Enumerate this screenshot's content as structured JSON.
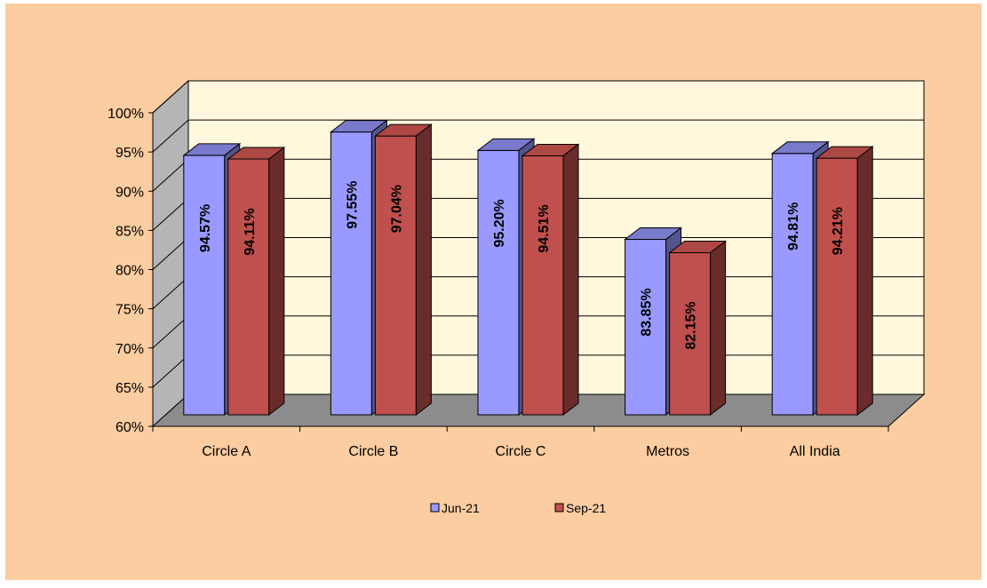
{
  "chart_data": {
    "type": "bar",
    "style": "3d-clustered-column",
    "categories": [
      "Circle A",
      "Circle B",
      "Circle C",
      "Metros",
      "All India"
    ],
    "series": [
      {
        "name": "Jun-21",
        "values": [
          94.57,
          97.55,
          95.2,
          83.85,
          94.81
        ],
        "labels": [
          "94.57%",
          "97.55%",
          "95.20%",
          "83.85%",
          "94.81%"
        ],
        "color": "#9999FF"
      },
      {
        "name": "Sep-21",
        "values": [
          94.11,
          97.04,
          94.51,
          82.15,
          94.21
        ],
        "labels": [
          "94.11%",
          "97.04%",
          "94.51%",
          "82.15%",
          "94.21%"
        ],
        "color": "#C0504D"
      }
    ],
    "ylim": [
      60,
      100
    ],
    "yticks": [
      60,
      65,
      70,
      75,
      80,
      85,
      90,
      95,
      100
    ],
    "ytick_labels": [
      "60%",
      "65%",
      "70%",
      "75%",
      "80%",
      "85%",
      "90%",
      "95%",
      "100%"
    ],
    "grid": true,
    "legend_position": "bottom",
    "colors": {
      "page_background": "#FCCDA0",
      "plot_wall": "#FFF8DC",
      "side_wall": "#B5B5B5",
      "floor": "#8C8C8C",
      "grid": "#000000"
    }
  }
}
